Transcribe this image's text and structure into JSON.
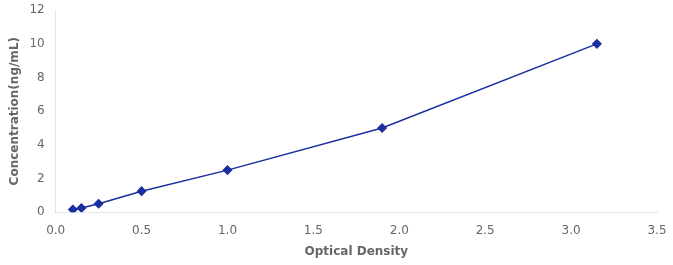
{
  "chart_data": {
    "type": "line",
    "xlabel": "Optical Density",
    "ylabel": "Concentration(ng/mL)",
    "x": [
      0.1,
      0.15,
      0.25,
      0.5,
      1.0,
      1.9,
      3.15
    ],
    "values": [
      0.156,
      0.25,
      0.5,
      1.25,
      2.5,
      5.0,
      10.0
    ],
    "color": "#1a2e9e",
    "marker": "diamond",
    "xlim": [
      0,
      3.5
    ],
    "ylim": [
      0,
      12
    ],
    "xticks": [
      {
        "value": 0,
        "label": "0.0"
      },
      0.5,
      {
        "value": 1.0,
        "label": "1.0"
      },
      1.5,
      {
        "value": 2.0,
        "label": "2.0"
      },
      2.5,
      {
        "value": 3.0,
        "label": "3.0"
      },
      3.5
    ],
    "yticks": [
      0,
      2,
      4,
      6,
      8,
      10,
      12
    ],
    "grid": false
  }
}
